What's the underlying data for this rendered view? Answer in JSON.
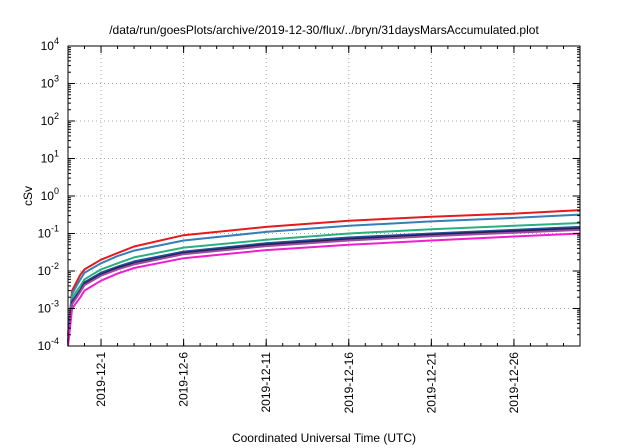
{
  "chart_data": {
    "type": "line",
    "title": "/data/run/goesPlots/archive/2019-12-30/flux/../bryn/31daysMarsAccumulated.plot",
    "xlabel": "Coordinated Universal Time (UTC)",
    "ylabel": "cSv",
    "x_range": [
      "2019-11-29",
      "2019-12-30"
    ],
    "ylim": [
      0.0001,
      10000
    ],
    "y_scale": "log",
    "grid": true,
    "x_ticks": [
      "2019-12-1",
      "2019-12-6",
      "2019-12-11",
      "2019-12-16",
      "2019-12-21",
      "2019-12-26"
    ],
    "y_ticks": [
      {
        "base": "10",
        "exp": "-4"
      },
      {
        "base": "10",
        "exp": "-3"
      },
      {
        "base": "10",
        "exp": "-2"
      },
      {
        "base": "10",
        "exp": "-1"
      },
      {
        "base": "10",
        "exp": "0"
      },
      {
        "base": "10",
        "exp": "1"
      },
      {
        "base": "10",
        "exp": "2"
      },
      {
        "base": "10",
        "exp": "3"
      },
      {
        "base": "10",
        "exp": "4"
      }
    ],
    "series": [
      {
        "color": "#e41a1c",
        "x": [
          "2019-11-29",
          "2019-11-29T06:00",
          "2019-11-29T18:00",
          "2019-11-30",
          "2019-12-1",
          "2019-12-2",
          "2019-12-3",
          "2019-12-6",
          "2019-12-11",
          "2019-12-16",
          "2019-12-21",
          "2019-12-26",
          "2019-12-30"
        ],
        "y": [
          0.0002,
          0.003,
          0.008,
          0.011,
          0.02,
          0.03,
          0.045,
          0.09,
          0.15,
          0.22,
          0.28,
          0.34,
          0.42
        ]
      },
      {
        "color": "#377eb8",
        "x": [
          "2019-11-29",
          "2019-11-29T06:00",
          "2019-11-29T18:00",
          "2019-11-30",
          "2019-12-1",
          "2019-12-2",
          "2019-12-3",
          "2019-12-6",
          "2019-12-11",
          "2019-12-16",
          "2019-12-21",
          "2019-12-26",
          "2019-12-30"
        ],
        "y": [
          0.00018,
          0.0025,
          0.006,
          0.009,
          0.016,
          0.025,
          0.035,
          0.065,
          0.11,
          0.16,
          0.21,
          0.26,
          0.32
        ]
      },
      {
        "color": "#2ab07f",
        "x": [
          "2019-11-29",
          "2019-11-29T06:00",
          "2019-11-29T18:00",
          "2019-11-30",
          "2019-12-1",
          "2019-12-2",
          "2019-12-3",
          "2019-12-6",
          "2019-12-11",
          "2019-12-16",
          "2019-12-21",
          "2019-12-26",
          "2019-12-30"
        ],
        "y": [
          0.00015,
          0.002,
          0.004,
          0.006,
          0.011,
          0.016,
          0.023,
          0.042,
          0.068,
          0.1,
          0.13,
          0.16,
          0.19
        ]
      },
      {
        "color": "#1f4e9a",
        "x": [
          "2019-11-29",
          "2019-11-29T06:00",
          "2019-11-29T18:00",
          "2019-11-30",
          "2019-12-1",
          "2019-12-2",
          "2019-12-3",
          "2019-12-6",
          "2019-12-11",
          "2019-12-16",
          "2019-12-21",
          "2019-12-26",
          "2019-12-30"
        ],
        "y": [
          0.00013,
          0.0016,
          0.0032,
          0.005,
          0.009,
          0.013,
          0.018,
          0.033,
          0.055,
          0.078,
          0.1,
          0.125,
          0.15
        ]
      },
      {
        "color": "#2b1a4a",
        "x": [
          "2019-11-29",
          "2019-11-29T06:00",
          "2019-11-29T18:00",
          "2019-11-30",
          "2019-12-1",
          "2019-12-2",
          "2019-12-3",
          "2019-12-6",
          "2019-12-11",
          "2019-12-16",
          "2019-12-21",
          "2019-12-26",
          "2019-12-30"
        ],
        "y": [
          0.00012,
          0.0014,
          0.003,
          0.0045,
          0.008,
          0.012,
          0.016,
          0.03,
          0.05,
          0.07,
          0.092,
          0.115,
          0.135
        ]
      },
      {
        "color": "#984ea3",
        "x": [
          "2019-11-29",
          "2019-11-29T06:00",
          "2019-11-29T18:00",
          "2019-11-30",
          "2019-12-1",
          "2019-12-2",
          "2019-12-3",
          "2019-12-6",
          "2019-12-11",
          "2019-12-16",
          "2019-12-21",
          "2019-12-26",
          "2019-12-30"
        ],
        "y": [
          0.00011,
          0.0013,
          0.0028,
          0.0042,
          0.0075,
          0.011,
          0.015,
          0.028,
          0.046,
          0.065,
          0.085,
          0.105,
          0.125
        ]
      },
      {
        "color": "#ee1fd0",
        "x": [
          "2019-11-29",
          "2019-11-29T06:00",
          "2019-11-29T18:00",
          "2019-11-30",
          "2019-12-1",
          "2019-12-2",
          "2019-12-3",
          "2019-12-6",
          "2019-12-11",
          "2019-12-16",
          "2019-12-21",
          "2019-12-26",
          "2019-12-30"
        ],
        "y": [
          0.0001,
          0.001,
          0.002,
          0.003,
          0.0055,
          0.0085,
          0.012,
          0.022,
          0.036,
          0.05,
          0.065,
          0.083,
          0.1
        ]
      }
    ]
  }
}
